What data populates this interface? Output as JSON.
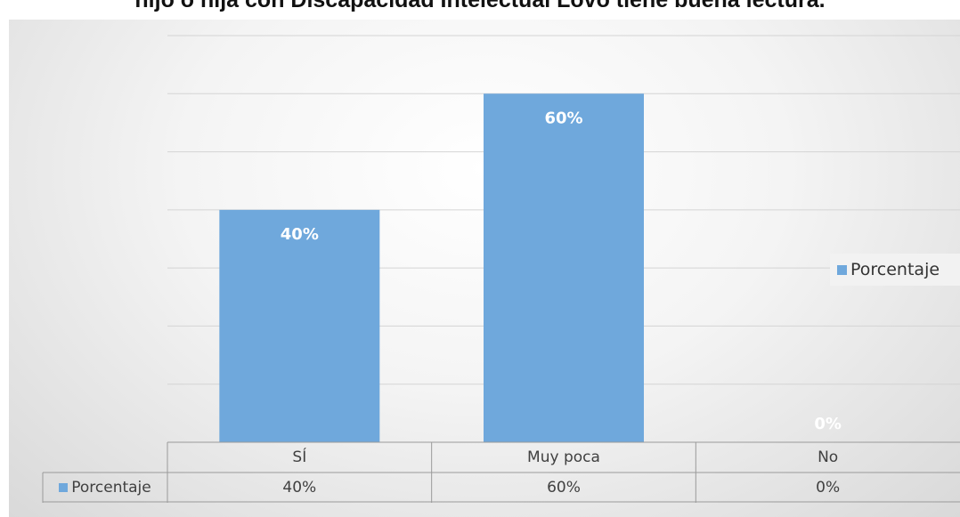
{
  "title": "hijo o hija con Discapacidad Intelectual Lovo tiene buena lectura.",
  "colors": {
    "bar": "#6fa8dc",
    "grid": "#d4d4d4",
    "label_on_bar": "#ffffff"
  },
  "legend": {
    "label": "Porcentaje"
  },
  "chart_data": {
    "type": "bar",
    "categories": [
      "SÍ",
      "Muy poca",
      "No"
    ],
    "series": [
      {
        "name": "Porcentaje",
        "values": [
          40,
          60,
          0
        ],
        "labels": [
          "40%",
          "60%",
          "0%"
        ]
      }
    ],
    "ylim": [
      0,
      70
    ],
    "grid": true,
    "legend_position": "right",
    "data_table": true
  }
}
